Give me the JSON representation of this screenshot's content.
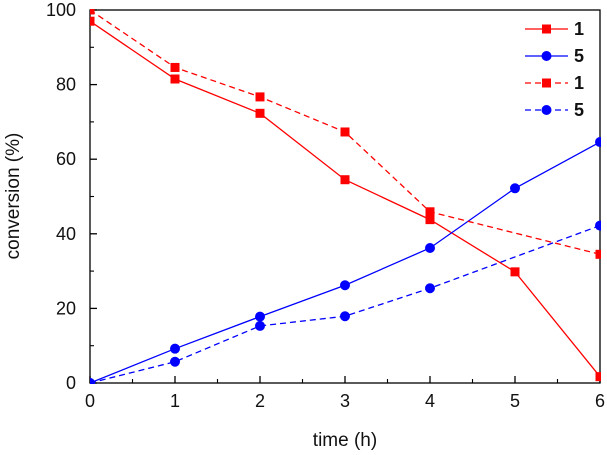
{
  "chart_data": {
    "type": "line",
    "title": "",
    "xlabel": "time (h)",
    "ylabel": "conversion (%)",
    "xlim": [
      0,
      6
    ],
    "ylim": [
      0,
      100
    ],
    "x_ticks": [
      0,
      1,
      2,
      3,
      4,
      5,
      6
    ],
    "y_ticks": [
      0,
      20,
      40,
      60,
      80,
      100
    ],
    "grid": false,
    "legend_position": "top-right",
    "series": [
      {
        "name": "1",
        "label": "1",
        "color": "#ff0000",
        "line_style": "solid",
        "marker": "square",
        "x": [
          0,
          1,
          2,
          3,
          4,
          5,
          6
        ],
        "y": [
          97,
          81.5,
          72.3,
          54.5,
          43.8,
          29.8,
          1.7
        ]
      },
      {
        "name": "5",
        "label": "5",
        "color": "#0000ff",
        "line_style": "solid",
        "marker": "circle",
        "x": [
          0,
          1,
          2,
          3,
          4,
          5,
          6
        ],
        "y": [
          0,
          9.2,
          17.8,
          26.2,
          36.2,
          52.2,
          64.6
        ]
      },
      {
        "name": "1",
        "label": "1",
        "color": "#ff0000",
        "line_style": "dashed",
        "marker": "square",
        "x": [
          0,
          1,
          2,
          3,
          4,
          6
        ],
        "y": [
          100,
          84.6,
          76.7,
          67.3,
          45.9,
          34.5
        ]
      },
      {
        "name": "5",
        "label": "5",
        "color": "#0000ff",
        "line_style": "dashed",
        "marker": "circle",
        "x": [
          0,
          1,
          2,
          3,
          4,
          6
        ],
        "y": [
          0,
          5.7,
          15.3,
          17.9,
          25.4,
          42.2
        ]
      }
    ]
  }
}
